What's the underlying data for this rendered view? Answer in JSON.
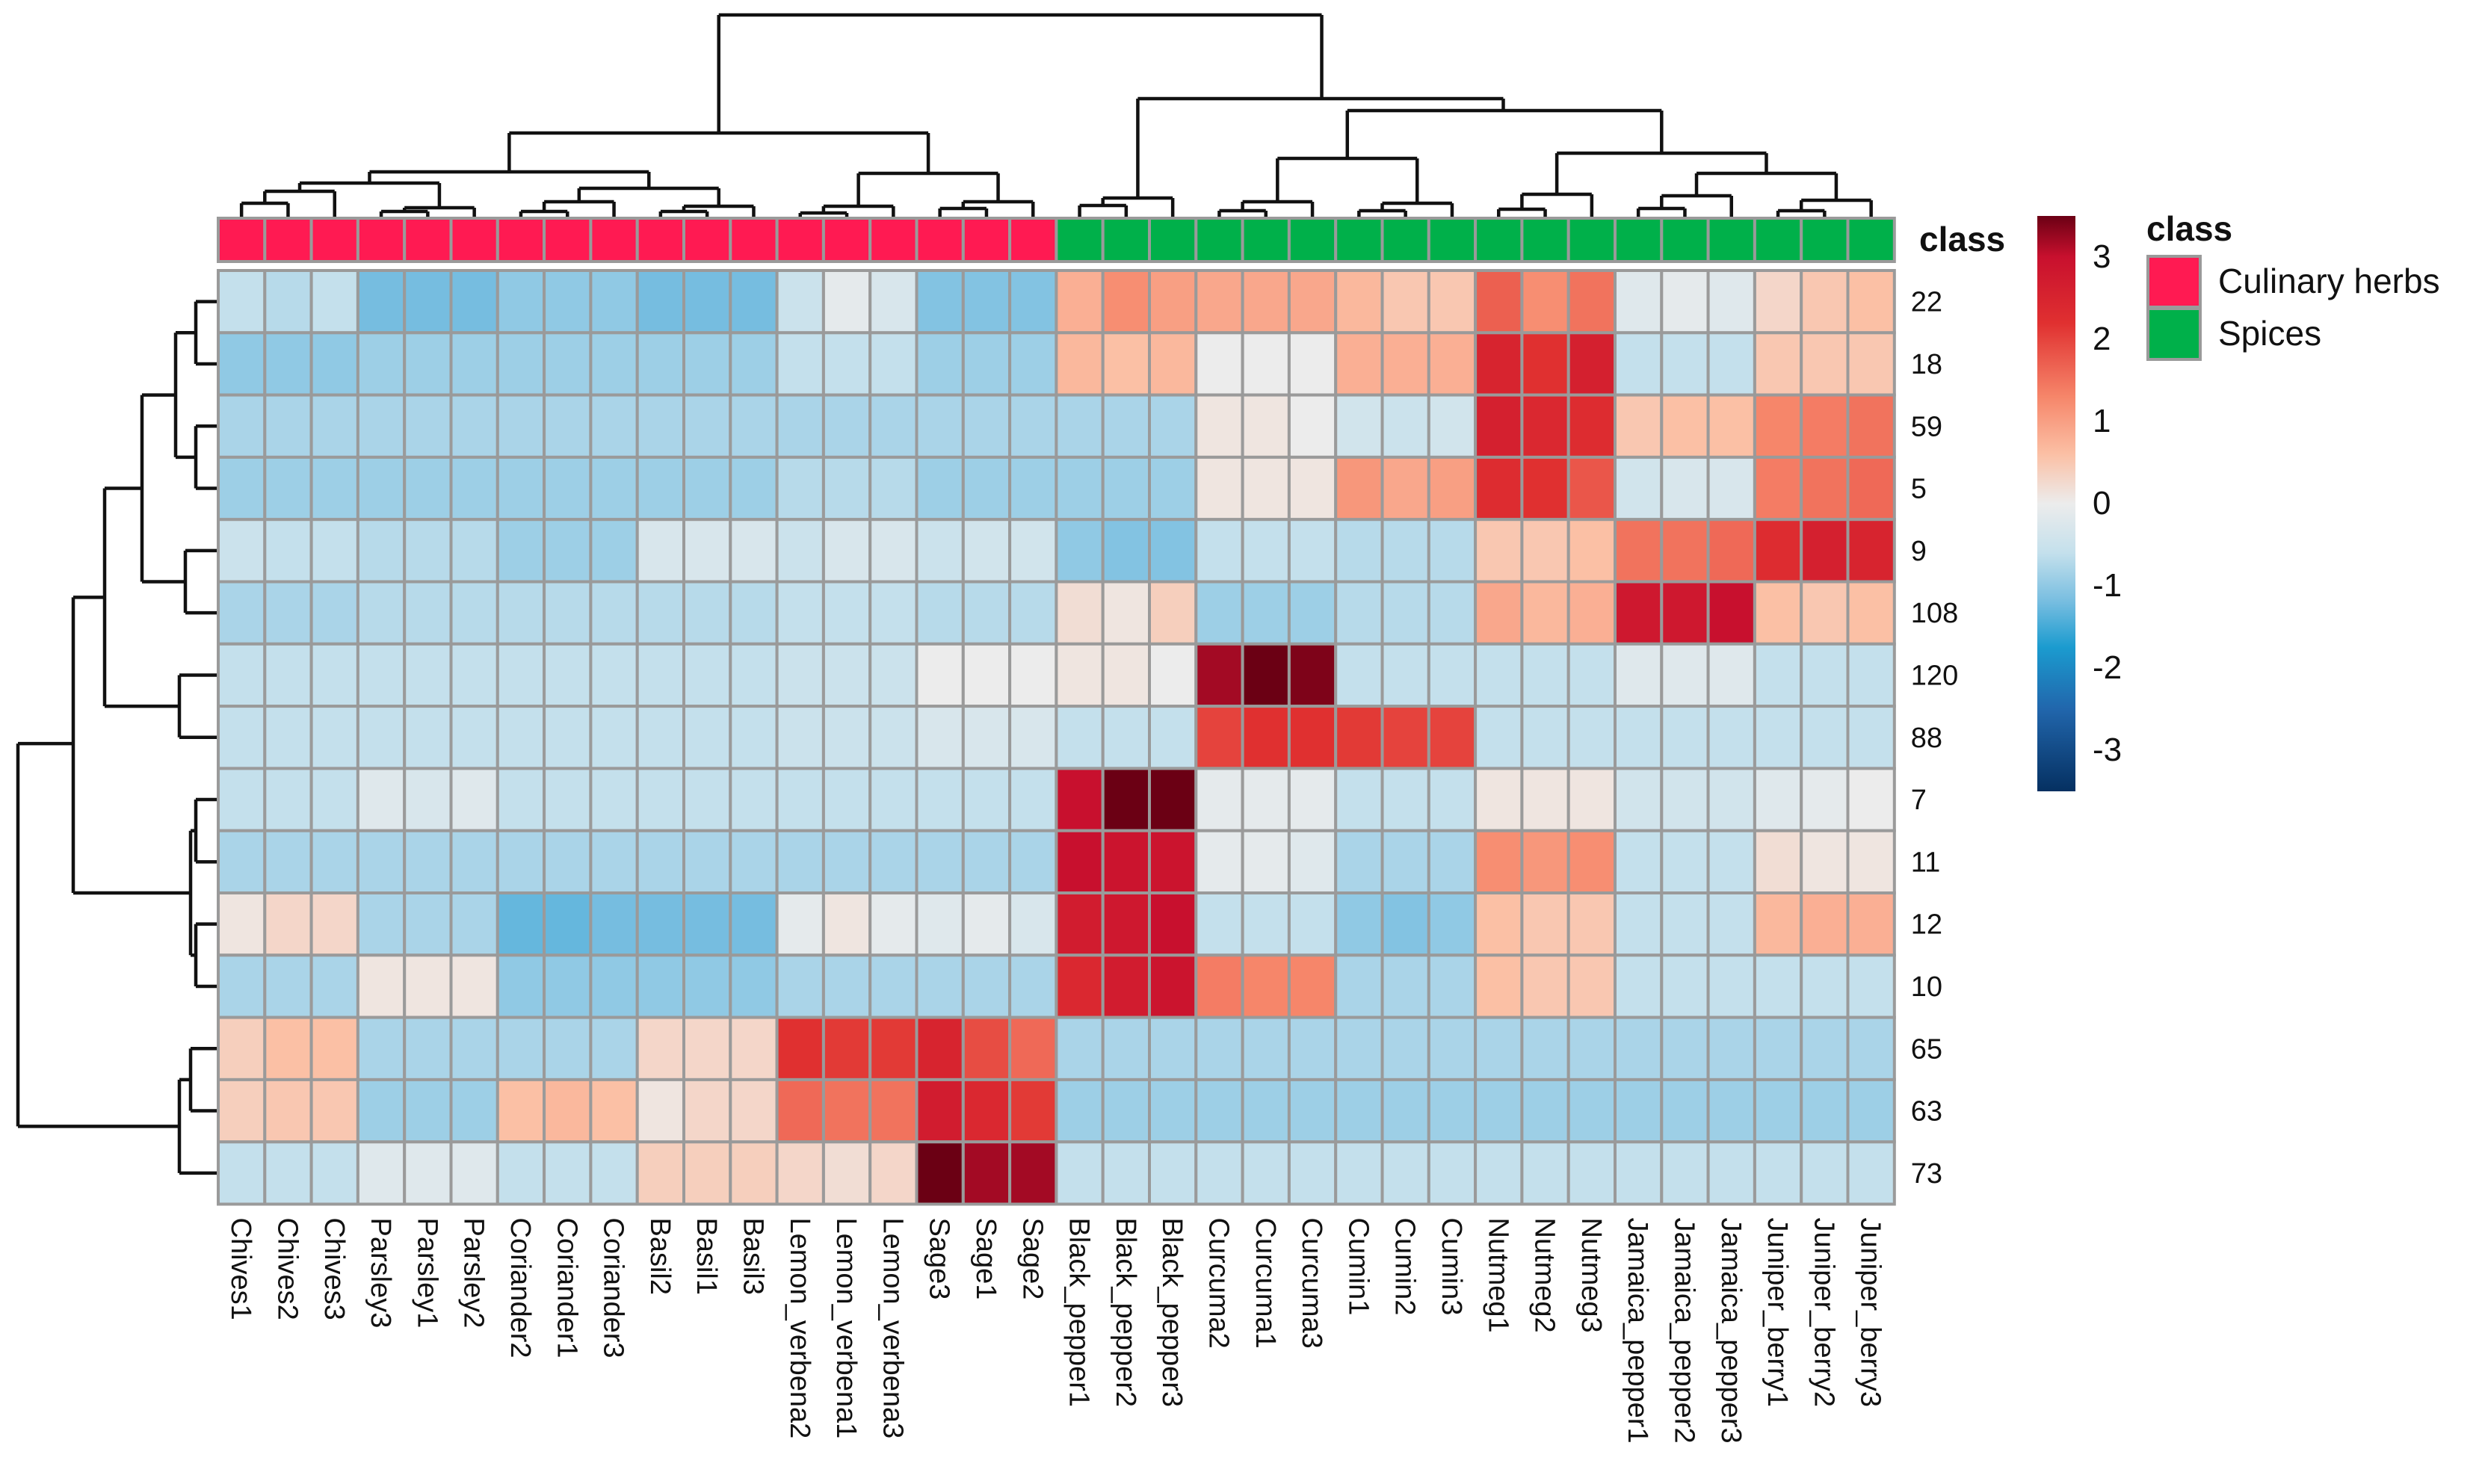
{
  "chart_data": {
    "type": "heatmap",
    "title": "",
    "columns": [
      "Chives1",
      "Chives2",
      "Chives3",
      "Parsley3",
      "Parsley1",
      "Parsley2",
      "Coriander2",
      "Coriander1",
      "Coriander3",
      "Basil2",
      "Basil1",
      "Basil3",
      "Lemon_verbena2",
      "Lemon_verbena1",
      "Lemon_verbena3",
      "Sage3",
      "Sage1",
      "Sage2",
      "Black_pepper1",
      "Black_pepper2",
      "Black_pepper3",
      "Curcuma2",
      "Curcuma1",
      "Curcuma3",
      "Cumin1",
      "Cumin2",
      "Cumin3",
      "Nutmeg1",
      "Nutmeg2",
      "Nutmeg3",
      "Jamaica_pepper1",
      "Jamaica_pepper2",
      "Jamaica_pepper3",
      "Juniper_berry1",
      "Juniper_berry2",
      "Juniper_berry3"
    ],
    "rows": [
      "22",
      "18",
      "59",
      "5",
      "9",
      "108",
      "120",
      "88",
      "7",
      "11",
      "12",
      "10",
      "65",
      "63",
      "73"
    ],
    "column_classes": [
      "Culinary herbs",
      "Culinary herbs",
      "Culinary herbs",
      "Culinary herbs",
      "Culinary herbs",
      "Culinary herbs",
      "Culinary herbs",
      "Culinary herbs",
      "Culinary herbs",
      "Culinary herbs",
      "Culinary herbs",
      "Culinary herbs",
      "Culinary herbs",
      "Culinary herbs",
      "Culinary herbs",
      "Culinary herbs",
      "Culinary herbs",
      "Culinary herbs",
      "Spices",
      "Spices",
      "Spices",
      "Spices",
      "Spices",
      "Spices",
      "Spices",
      "Spices",
      "Spices",
      "Spices",
      "Spices",
      "Spices",
      "Spices",
      "Spices",
      "Spices",
      "Spices",
      "Spices",
      "Spices"
    ],
    "values": [
      [
        -0.6,
        -0.7,
        -0.6,
        -1.2,
        -1.2,
        -1.2,
        -1.0,
        -1.0,
        -1.0,
        -1.2,
        -1.2,
        -1.2,
        -0.5,
        -0.1,
        -0.3,
        -1.1,
        -1.1,
        -1.1,
        0.8,
        1.2,
        1.0,
        0.9,
        0.9,
        0.9,
        0.7,
        0.5,
        0.5,
        1.7,
        1.2,
        1.5,
        -0.2,
        -0.1,
        -0.2,
        0.3,
        0.5,
        0.6
      ],
      [
        -1.0,
        -1.0,
        -1.0,
        -0.9,
        -0.9,
        -0.9,
        -0.9,
        -0.9,
        -0.9,
        -0.9,
        -0.9,
        -0.9,
        -0.6,
        -0.6,
        -0.6,
        -0.9,
        -0.9,
        -0.9,
        0.7,
        0.6,
        0.7,
        0.0,
        0.0,
        0.0,
        0.8,
        0.8,
        0.8,
        2.5,
        2.2,
        2.6,
        -0.6,
        -0.6,
        -0.6,
        0.5,
        0.5,
        0.5
      ],
      [
        -0.8,
        -0.8,
        -0.8,
        -0.8,
        -0.8,
        -0.8,
        -0.8,
        -0.8,
        -0.8,
        -0.8,
        -0.8,
        -0.8,
        -0.8,
        -0.8,
        -0.8,
        -0.8,
        -0.8,
        -0.8,
        -0.8,
        -0.8,
        -0.8,
        0.1,
        0.1,
        0.0,
        -0.4,
        -0.5,
        -0.4,
        2.6,
        2.4,
        2.3,
        0.5,
        0.6,
        0.6,
        1.3,
        1.4,
        1.5
      ],
      [
        -0.9,
        -0.9,
        -0.9,
        -0.9,
        -0.9,
        -0.9,
        -0.9,
        -0.9,
        -0.9,
        -0.9,
        -0.9,
        -0.9,
        -0.7,
        -0.7,
        -0.7,
        -0.9,
        -0.9,
        -0.9,
        -0.9,
        -0.9,
        -0.9,
        0.1,
        0.1,
        0.1,
        1.1,
        0.9,
        1.0,
        2.3,
        2.2,
        1.8,
        -0.4,
        -0.3,
        -0.3,
        1.4,
        1.5,
        1.6
      ],
      [
        -0.5,
        -0.6,
        -0.6,
        -0.7,
        -0.7,
        -0.7,
        -0.9,
        -0.9,
        -0.9,
        -0.3,
        -0.3,
        -0.3,
        -0.5,
        -0.3,
        -0.3,
        -0.5,
        -0.4,
        -0.4,
        -1.0,
        -1.1,
        -1.1,
        -0.6,
        -0.6,
        -0.6,
        -0.7,
        -0.7,
        -0.7,
        0.5,
        0.5,
        0.6,
        1.5,
        1.5,
        1.6,
        2.3,
        2.6,
        2.5
      ],
      [
        -0.8,
        -0.8,
        -0.8,
        -0.7,
        -0.7,
        -0.7,
        -0.7,
        -0.7,
        -0.7,
        -0.7,
        -0.7,
        -0.7,
        -0.6,
        -0.6,
        -0.6,
        -0.7,
        -0.7,
        -0.7,
        0.2,
        0.1,
        0.4,
        -0.9,
        -0.9,
        -0.9,
        -0.7,
        -0.7,
        -0.7,
        0.9,
        0.7,
        0.8,
        2.8,
        2.8,
        3.0,
        0.6,
        0.5,
        0.6
      ],
      [
        -0.6,
        -0.6,
        -0.6,
        -0.6,
        -0.6,
        -0.6,
        -0.6,
        -0.6,
        -0.6,
        -0.6,
        -0.6,
        -0.6,
        -0.5,
        -0.5,
        -0.5,
        0.0,
        0.0,
        0.0,
        0.1,
        0.1,
        0.0,
        3.2,
        3.5,
        3.4,
        -0.6,
        -0.6,
        -0.6,
        -0.6,
        -0.6,
        -0.6,
        -0.2,
        -0.2,
        -0.2,
        -0.6,
        -0.6,
        -0.6
      ],
      [
        -0.6,
        -0.6,
        -0.6,
        -0.6,
        -0.6,
        -0.6,
        -0.6,
        -0.6,
        -0.6,
        -0.6,
        -0.6,
        -0.6,
        -0.5,
        -0.5,
        -0.5,
        -0.3,
        -0.3,
        -0.3,
        -0.6,
        -0.6,
        -0.6,
        2.0,
        2.2,
        2.2,
        2.1,
        2.0,
        2.0,
        -0.6,
        -0.6,
        -0.6,
        -0.6,
        -0.6,
        -0.6,
        -0.6,
        -0.6,
        -0.6
      ],
      [
        -0.6,
        -0.6,
        -0.6,
        -0.2,
        -0.3,
        -0.2,
        -0.6,
        -0.6,
        -0.6,
        -0.6,
        -0.6,
        -0.6,
        -0.6,
        -0.6,
        -0.6,
        -0.6,
        -0.6,
        -0.6,
        3.0,
        3.5,
        3.5,
        -0.1,
        -0.1,
        -0.1,
        -0.6,
        -0.6,
        -0.6,
        0.1,
        0.1,
        0.1,
        -0.4,
        -0.4,
        -0.4,
        -0.2,
        -0.1,
        0.0
      ],
      [
        -0.8,
        -0.8,
        -0.8,
        -0.8,
        -0.8,
        -0.8,
        -0.8,
        -0.8,
        -0.8,
        -0.8,
        -0.8,
        -0.8,
        -0.8,
        -0.8,
        -0.8,
        -0.8,
        -0.8,
        -0.8,
        3.0,
        2.9,
        2.9,
        -0.1,
        -0.1,
        -0.2,
        -0.8,
        -0.8,
        -0.8,
        1.2,
        1.1,
        1.2,
        -0.6,
        -0.6,
        -0.6,
        0.2,
        0.1,
        0.1
      ],
      [
        0.1,
        0.3,
        0.3,
        -0.8,
        -0.8,
        -0.8,
        -1.3,
        -1.3,
        -1.2,
        -1.2,
        -1.2,
        -1.2,
        -0.1,
        0.1,
        -0.1,
        -0.2,
        -0.1,
        -0.3,
        2.7,
        2.8,
        3.0,
        -0.6,
        -0.6,
        -0.6,
        -1.0,
        -1.1,
        -1.0,
        0.6,
        0.5,
        0.5,
        -0.6,
        -0.6,
        -0.6,
        0.7,
        0.8,
        0.8
      ],
      [
        -0.8,
        -0.8,
        -0.8,
        0.1,
        0.1,
        0.1,
        -1.0,
        -1.0,
        -1.0,
        -1.0,
        -1.0,
        -1.0,
        -0.8,
        -0.8,
        -0.8,
        -0.8,
        -0.8,
        -0.8,
        2.4,
        2.7,
        2.9,
        1.4,
        1.3,
        1.3,
        -0.8,
        -0.8,
        -0.8,
        0.6,
        0.5,
        0.5,
        -0.6,
        -0.6,
        -0.6,
        -0.6,
        -0.6,
        -0.6
      ],
      [
        0.4,
        0.6,
        0.6,
        -0.8,
        -0.8,
        -0.8,
        -0.8,
        -0.8,
        -0.8,
        0.3,
        0.3,
        0.3,
        2.2,
        2.1,
        2.1,
        2.5,
        1.9,
        1.6,
        -0.8,
        -0.8,
        -0.8,
        -0.8,
        -0.8,
        -0.8,
        -0.8,
        -0.8,
        -0.8,
        -0.8,
        -0.8,
        -0.8,
        -0.8,
        -0.8,
        -0.8,
        -0.8,
        -0.8,
        -0.8
      ],
      [
        0.4,
        0.5,
        0.5,
        -0.9,
        -0.9,
        -0.9,
        0.6,
        0.7,
        0.6,
        0.1,
        0.3,
        0.3,
        1.6,
        1.5,
        1.5,
        2.7,
        2.4,
        2.1,
        -0.9,
        -0.9,
        -0.9,
        -0.9,
        -0.9,
        -0.9,
        -0.9,
        -0.9,
        -0.9,
        -0.9,
        -0.9,
        -0.9,
        -0.9,
        -0.9,
        -0.9,
        -0.9,
        -0.9,
        -0.9
      ],
      [
        -0.6,
        -0.6,
        -0.6,
        -0.2,
        -0.2,
        -0.2,
        -0.6,
        -0.6,
        -0.6,
        0.4,
        0.4,
        0.4,
        0.3,
        0.2,
        0.3,
        3.5,
        3.2,
        3.2,
        -0.6,
        -0.6,
        -0.6,
        -0.6,
        -0.6,
        -0.6,
        -0.6,
        -0.6,
        -0.6,
        -0.6,
        -0.6,
        -0.6,
        -0.6,
        -0.6,
        -0.6,
        -0.6,
        -0.6,
        -0.6
      ]
    ],
    "color_scale": {
      "ticks": [
        "3",
        "2",
        "1",
        "0",
        "-1",
        "-2",
        "-3"
      ],
      "range": [
        -3.5,
        3.5
      ],
      "stops": [
        {
          "v": -3.5,
          "c": "#053061"
        },
        {
          "v": -2.5,
          "c": "#2166ac"
        },
        {
          "v": -1.75,
          "c": "#1b9bcf"
        },
        {
          "v": -1.2,
          "c": "#76bde0"
        },
        {
          "v": -0.6,
          "c": "#c4e0ec"
        },
        {
          "v": 0.0,
          "c": "#ececec"
        },
        {
          "v": 0.6,
          "c": "#fbc0a5"
        },
        {
          "v": 1.3,
          "c": "#f6866a"
        },
        {
          "v": 2.2,
          "c": "#e03030"
        },
        {
          "v": 3.0,
          "c": "#c8102e"
        },
        {
          "v": 3.5,
          "c": "#6b0014"
        }
      ]
    },
    "annotation": {
      "title": "class",
      "row_label": "class",
      "categories": [
        {
          "name": "Culinary herbs",
          "color": "#ff1a52"
        },
        {
          "name": "Spices",
          "color": "#00b04a"
        }
      ]
    },
    "cell_border_color": "#9a9a9a"
  }
}
